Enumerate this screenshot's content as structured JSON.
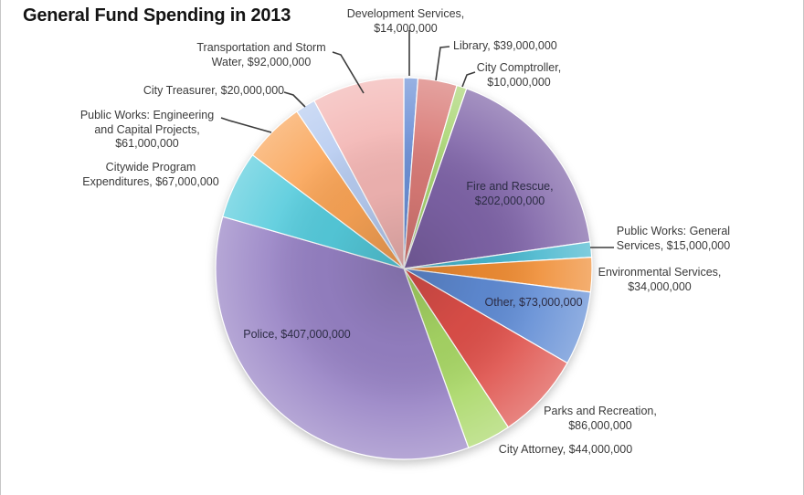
{
  "title": "General Fund Spending in 2013",
  "chart_data": {
    "type": "pie",
    "title": "General Fund Spending in 2013",
    "units": "USD",
    "total_value": 1164000000,
    "start_angle_deg": 0,
    "direction": "clockwise",
    "legend": "none",
    "grid": false,
    "segments": [
      {
        "id": "development-services",
        "label": "Development Services",
        "value": 14000000,
        "display": "$14,000,000",
        "label_lines": [
          "Development Services,",
          "$14,000,000"
        ],
        "color": "#6C90D6",
        "label_placement": "outside"
      },
      {
        "id": "library",
        "label": "Library",
        "value": 39000000,
        "display": "$39,000,000",
        "label_lines": [
          "Library, $39,000,000"
        ],
        "color": "#D97A76",
        "label_placement": "outside"
      },
      {
        "id": "city-comptroller",
        "label": "City Comptroller",
        "value": 10000000,
        "display": "$10,000,000",
        "label_lines": [
          "City Comptroller,",
          "$10,000,000"
        ],
        "color": "#A9D573",
        "label_placement": "outside"
      },
      {
        "id": "fire-and-rescue",
        "label": "Fire and Rescue",
        "value": 202000000,
        "display": "$202,000,000",
        "label_lines": [
          "Fire and Rescue,",
          "$202,000,000"
        ],
        "color": "#7E63A7",
        "label_placement": "inside"
      },
      {
        "id": "public-works-general-services",
        "label": "Public Works: General Services",
        "value": 15000000,
        "display": "$15,000,000",
        "label_lines": [
          "Public Works: General",
          "Services, $15,000,000"
        ],
        "color": "#48B7CE",
        "label_placement": "outside"
      },
      {
        "id": "environmental-services",
        "label": "Environmental Services",
        "value": 34000000,
        "display": "$34,000,000",
        "label_lines": [
          "Environmental Services,",
          "$34,000,000"
        ],
        "color": "#EF8C33",
        "label_placement": "outside"
      },
      {
        "id": "other",
        "label": "Other",
        "value": 73000000,
        "display": "$73,000,000",
        "label_lines": [
          "Other, $73,000,000"
        ],
        "color": "#5F8BD4",
        "label_placement": "inside"
      },
      {
        "id": "parks-and-recreation",
        "label": "Parks and Recreation",
        "value": 86000000,
        "display": "$86,000,000",
        "label_lines": [
          "Parks and Recreation,",
          "$86,000,000"
        ],
        "color": "#DE4F49",
        "label_placement": "outside"
      },
      {
        "id": "city-attorney",
        "label": "City Attorney",
        "value": 44000000,
        "display": "$44,000,000",
        "label_lines": [
          "City Attorney, $44,000,000"
        ],
        "color": "#A8D765",
        "label_placement": "outside"
      },
      {
        "id": "police",
        "label": "Police",
        "value": 407000000,
        "display": "$407,000,000",
        "label_lines": [
          "Police, $407,000,000"
        ],
        "color": "#9681C4",
        "label_placement": "inside"
      },
      {
        "id": "citywide-program-expenditures",
        "label": "Citywide Program Expenditures",
        "value": 67000000,
        "display": "$67,000,000",
        "label_lines": [
          "Citywide Program",
          "Expenditures, $67,000,000"
        ],
        "color": "#55CBDC",
        "label_placement": "outside"
      },
      {
        "id": "public-works-engineering",
        "label": "Public Works: Engineering and Capital Projects",
        "value": 61000000,
        "display": "$61,000,000",
        "label_lines": [
          "Public Works: Engineering",
          "and Capital Projects,",
          "$61,000,000"
        ],
        "color": "#F9A355",
        "label_placement": "outside"
      },
      {
        "id": "city-treasurer",
        "label": "City Treasurer",
        "value": 20000000,
        "display": "$20,000,000",
        "label_lines": [
          "City Treasurer, $20,000,000"
        ],
        "color": "#B6CBF0",
        "label_placement": "outside"
      },
      {
        "id": "transportation-storm-water",
        "label": "Transportation and Storm Water",
        "value": 92000000,
        "display": "$92,000,000",
        "label_lines": [
          "Transportation and Storm",
          "Water, $92,000,000"
        ],
        "color": "#F3B5B3",
        "label_placement": "outside"
      }
    ]
  }
}
